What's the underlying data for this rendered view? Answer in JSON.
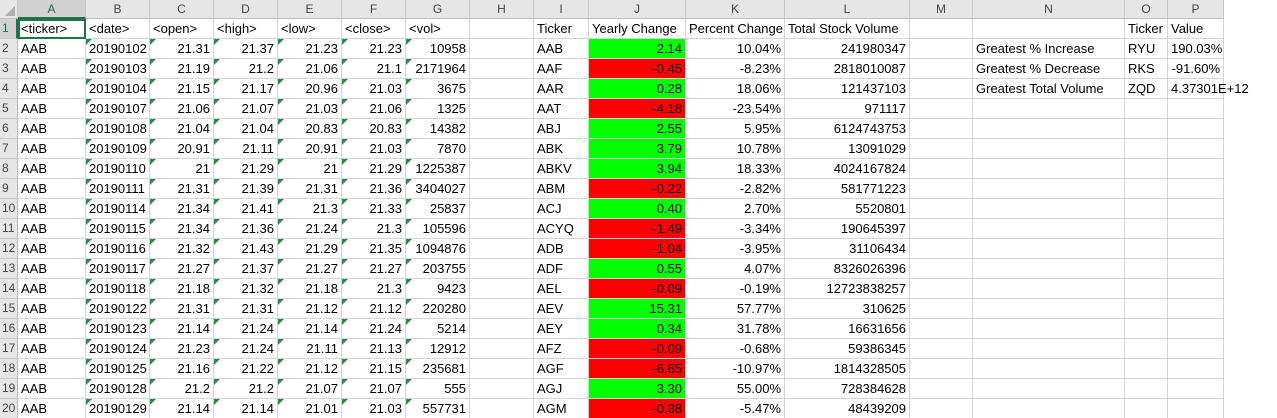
{
  "columns": [
    "A",
    "B",
    "C",
    "D",
    "E",
    "F",
    "G",
    "H",
    "I",
    "J",
    "K",
    "L",
    "M",
    "N",
    "O",
    "P"
  ],
  "active_cell": "A1",
  "colors": {
    "positive": "#00ff00",
    "negative": "#ff0000",
    "accent": "#217346"
  },
  "rows": [
    {
      "num": "1",
      "a": "<ticker>",
      "b": "<date>",
      "c": "<open>",
      "d": "<high>",
      "e": "<low>",
      "f": "<close>",
      "g": "<vol>",
      "i": "Ticker",
      "j": "Yearly Change",
      "k": "Percent Change",
      "l": "Total Stock Volume",
      "n": "",
      "o": "Ticker",
      "p": "Value"
    },
    {
      "num": "2",
      "a": "AAB",
      "b": "20190102",
      "c": "21.31",
      "d": "21.37",
      "e": "21.23",
      "f": "21.23",
      "g": "10958",
      "i": "AAB",
      "j": "2.14",
      "k": "10.04%",
      "l": "241980347",
      "n": "Greatest % Increase",
      "o": "RYU",
      "p": "190.03%"
    },
    {
      "num": "3",
      "a": "AAB",
      "b": "20190103",
      "c": "21.19",
      "d": "21.2",
      "e": "21.06",
      "f": "21.1",
      "g": "2171964",
      "i": "AAF",
      "j": "-0.45",
      "k": "-8.23%",
      "l": "2818010087",
      "n": "Greatest % Decrease",
      "o": "RKS",
      "p": "-91.60%"
    },
    {
      "num": "4",
      "a": "AAB",
      "b": "20190104",
      "c": "21.15",
      "d": "21.17",
      "e": "20.96",
      "f": "21.03",
      "g": "3675",
      "i": "AAR",
      "j": "0.28",
      "k": "18.06%",
      "l": "121437103",
      "n": "Greatest Total Volume",
      "o": "ZQD",
      "p": "4.37301E+12"
    },
    {
      "num": "5",
      "a": "AAB",
      "b": "20190107",
      "c": "21.06",
      "d": "21.07",
      "e": "21.03",
      "f": "21.06",
      "g": "1325",
      "i": "AAT",
      "j": "-4.18",
      "k": "-23.54%",
      "l": "971117",
      "n": "",
      "o": "",
      "p": ""
    },
    {
      "num": "6",
      "a": "AAB",
      "b": "20190108",
      "c": "21.04",
      "d": "21.04",
      "e": "20.83",
      "f": "20.83",
      "g": "14382",
      "i": "ABJ",
      "j": "2.55",
      "k": "5.95%",
      "l": "6124743753",
      "n": "",
      "o": "",
      "p": ""
    },
    {
      "num": "7",
      "a": "AAB",
      "b": "20190109",
      "c": "20.91",
      "d": "21.11",
      "e": "20.91",
      "f": "21.03",
      "g": "7870",
      "i": "ABK",
      "j": "3.79",
      "k": "10.78%",
      "l": "13091029",
      "n": "",
      "o": "",
      "p": ""
    },
    {
      "num": "8",
      "a": "AAB",
      "b": "20190110",
      "c": "21",
      "d": "21.29",
      "e": "21",
      "f": "21.29",
      "g": "1225387",
      "i": "ABKV",
      "j": "3.94",
      "k": "18.33%",
      "l": "4024167824",
      "n": "",
      "o": "",
      "p": ""
    },
    {
      "num": "9",
      "a": "AAB",
      "b": "20190111",
      "c": "21.31",
      "d": "21.39",
      "e": "21.31",
      "f": "21.36",
      "g": "3404027",
      "i": "ABM",
      "j": "-0.22",
      "k": "-2.82%",
      "l": "581771223",
      "n": "",
      "o": "",
      "p": ""
    },
    {
      "num": "10",
      "a": "AAB",
      "b": "20190114",
      "c": "21.34",
      "d": "21.41",
      "e": "21.3",
      "f": "21.33",
      "g": "25837",
      "i": "ACJ",
      "j": "0.40",
      "k": "2.70%",
      "l": "5520801",
      "n": "",
      "o": "",
      "p": ""
    },
    {
      "num": "11",
      "a": "AAB",
      "b": "20190115",
      "c": "21.34",
      "d": "21.36",
      "e": "21.24",
      "f": "21.3",
      "g": "105596",
      "i": "ACYQ",
      "j": "-1.49",
      "k": "-3.34%",
      "l": "190645397",
      "n": "",
      "o": "",
      "p": ""
    },
    {
      "num": "12",
      "a": "AAB",
      "b": "20190116",
      "c": "21.32",
      "d": "21.43",
      "e": "21.29",
      "f": "21.35",
      "g": "1094876",
      "i": "ADB",
      "j": "-1.04",
      "k": "-3.95%",
      "l": "31106434",
      "n": "",
      "o": "",
      "p": ""
    },
    {
      "num": "13",
      "a": "AAB",
      "b": "20190117",
      "c": "21.27",
      "d": "21.37",
      "e": "21.27",
      "f": "21.27",
      "g": "203755",
      "i": "ADF",
      "j": "0.55",
      "k": "4.07%",
      "l": "8326026396",
      "n": "",
      "o": "",
      "p": ""
    },
    {
      "num": "14",
      "a": "AAB",
      "b": "20190118",
      "c": "21.18",
      "d": "21.32",
      "e": "21.18",
      "f": "21.3",
      "g": "9423",
      "i": "AEL",
      "j": "-0.09",
      "k": "-0.19%",
      "l": "12723838257",
      "n": "",
      "o": "",
      "p": ""
    },
    {
      "num": "15",
      "a": "AAB",
      "b": "20190122",
      "c": "21.31",
      "d": "21.31",
      "e": "21.12",
      "f": "21.12",
      "g": "220280",
      "i": "AEV",
      "j": "15.31",
      "k": "57.77%",
      "l": "310625",
      "n": "",
      "o": "",
      "p": ""
    },
    {
      "num": "16",
      "a": "AAB",
      "b": "20190123",
      "c": "21.14",
      "d": "21.24",
      "e": "21.14",
      "f": "21.24",
      "g": "5214",
      "i": "AEY",
      "j": "0.34",
      "k": "31.78%",
      "l": "16631656",
      "n": "",
      "o": "",
      "p": ""
    },
    {
      "num": "17",
      "a": "AAB",
      "b": "20190124",
      "c": "21.23",
      "d": "21.24",
      "e": "21.11",
      "f": "21.13",
      "g": "12912",
      "i": "AFZ",
      "j": "-0.09",
      "k": "-0.68%",
      "l": "59386345",
      "n": "",
      "o": "",
      "p": ""
    },
    {
      "num": "18",
      "a": "AAB",
      "b": "20190125",
      "c": "21.16",
      "d": "21.22",
      "e": "21.12",
      "f": "21.15",
      "g": "235681",
      "i": "AGF",
      "j": "-6.65",
      "k": "-10.97%",
      "l": "1814328505",
      "n": "",
      "o": "",
      "p": ""
    },
    {
      "num": "19",
      "a": "AAB",
      "b": "20190128",
      "c": "21.2",
      "d": "21.2",
      "e": "21.07",
      "f": "21.07",
      "g": "555",
      "i": "AGJ",
      "j": "3.30",
      "k": "55.00%",
      "l": "728384628",
      "n": "",
      "o": "",
      "p": ""
    },
    {
      "num": "20",
      "a": "AAB",
      "b": "20190129",
      "c": "21.14",
      "d": "21.14",
      "e": "21.01",
      "f": "21.03",
      "g": "557731",
      "i": "AGM",
      "j": "-0.38",
      "k": "-5.47%",
      "l": "48439209",
      "n": "",
      "o": "",
      "p": ""
    }
  ]
}
